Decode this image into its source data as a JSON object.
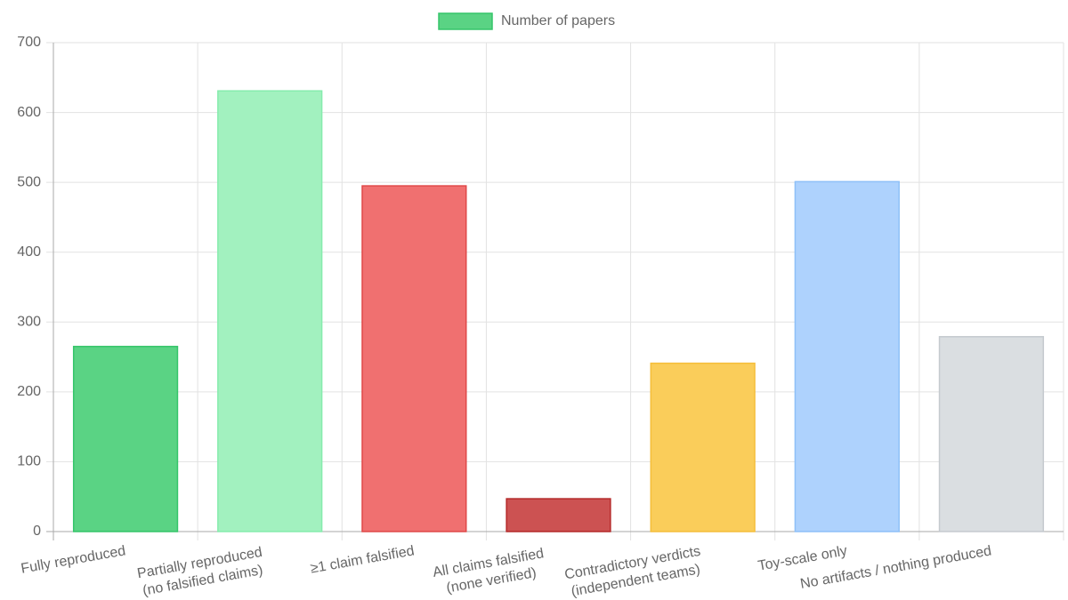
{
  "chart_data": {
    "type": "bar",
    "categories": [
      [
        "Fully reproduced"
      ],
      [
        "Partially reproduced",
        "(no falsified claims)"
      ],
      [
        "≥1 claim falsified"
      ],
      [
        "All claims falsified",
        "(none verified)"
      ],
      [
        "Contradictory verdicts",
        "(independent teams)"
      ],
      [
        "Toy-scale only"
      ],
      [
        "No artifacts / nothing produced"
      ]
    ],
    "series": [
      {
        "name": "Number of papers",
        "values": [
          265,
          631,
          495,
          47,
          241,
          501,
          279
        ],
        "colors": [
          "#5ad384",
          "#a2f1bf",
          "#f07070",
          "#cc5252",
          "#facd5a",
          "#aed2fd",
          "#dadee1"
        ],
        "border_colors": [
          "#35c56a",
          "#86ecad",
          "#e04848",
          "#b52a2a",
          "#f5be3a",
          "#8ec0f8",
          "#c5cacf"
        ]
      }
    ],
    "ylim": [
      0,
      700
    ],
    "yticks": [
      0,
      100,
      200,
      300,
      400,
      500,
      600,
      700
    ],
    "grid": true,
    "legend": "top"
  }
}
